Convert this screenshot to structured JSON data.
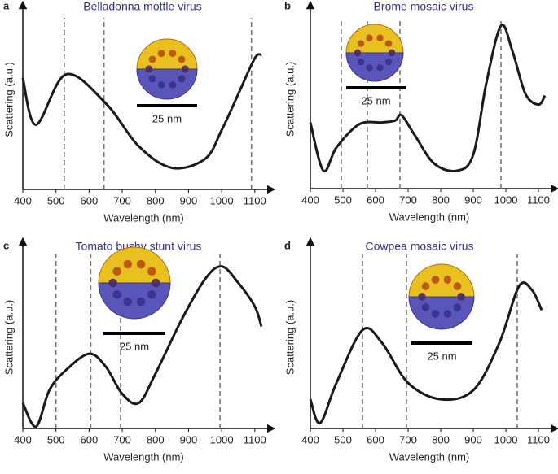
{
  "chart_data": [
    {
      "type": "line",
      "panel": "a",
      "title": "Belladonna mottle virus",
      "xlabel": "Wavelength (nm)",
      "ylabel": "Scattering (a.u.)",
      "x": [
        400,
        440,
        530,
        650,
        750,
        850,
        950,
        1000,
        1050,
        1100,
        1120
      ],
      "values": [
        0.62,
        0.36,
        0.64,
        0.48,
        0.24,
        0.12,
        0.17,
        0.33,
        0.53,
        0.73,
        0.75
      ],
      "color": "#1a1a1a",
      "markers": [
        525,
        645,
        1090
      ],
      "scale_label": "25 nm",
      "xlim": [
        400,
        1130
      ],
      "ylim": [
        0,
        1
      ],
      "xticks": [
        400,
        500,
        600,
        700,
        800,
        900,
        1000,
        1100
      ]
    },
    {
      "type": "line",
      "panel": "b",
      "title": "Brome mosaic virus",
      "xlabel": "Wavelength (nm)",
      "ylabel": "Scattering (a.u.)",
      "x": [
        400,
        440,
        480,
        550,
        620,
        660,
        680,
        720,
        780,
        850,
        900,
        940,
        985,
        1020,
        1060,
        1100,
        1120
      ],
      "values": [
        0.37,
        0.1,
        0.23,
        0.36,
        0.37,
        0.38,
        0.41,
        0.3,
        0.14,
        0.1,
        0.19,
        0.59,
        0.91,
        0.77,
        0.53,
        0.47,
        0.52
      ],
      "color": "#1a1a1a",
      "markers": [
        495,
        575,
        675,
        985
      ],
      "scale_label": "25 nm",
      "xlim": [
        400,
        1130
      ],
      "ylim": [
        0,
        1
      ],
      "xticks": [
        400,
        500,
        600,
        700,
        800,
        900,
        1000,
        1100
      ]
    },
    {
      "type": "line",
      "panel": "c",
      "title": "Tomato bushy stunt virus",
      "xlabel": "Wavelength (nm)",
      "ylabel": "Scattering (a.u.)",
      "x": [
        400,
        440,
        480,
        530,
        600,
        650,
        700,
        750,
        800,
        880,
        950,
        1000,
        1050,
        1100,
        1120
      ],
      "values": [
        0.14,
        0.01,
        0.21,
        0.32,
        0.41,
        0.34,
        0.19,
        0.14,
        0.3,
        0.6,
        0.82,
        0.89,
        0.8,
        0.67,
        0.56
      ],
      "color": "#1a1a1a",
      "markers": [
        500,
        605,
        695,
        995
      ],
      "scale_label": "25 nm",
      "xlim": [
        400,
        1130
      ],
      "ylim": [
        0,
        1
      ],
      "xticks": [
        400,
        500,
        600,
        700,
        800,
        900,
        1000,
        1100
      ]
    },
    {
      "type": "line",
      "panel": "d",
      "title": "Cowpea mosaic virus",
      "xlabel": "Wavelength (nm)",
      "ylabel": "Scattering (a.u.)",
      "x": [
        400,
        430,
        480,
        560,
        620,
        700,
        800,
        900,
        980,
        1040,
        1080,
        1110
      ],
      "values": [
        0.16,
        0.03,
        0.25,
        0.54,
        0.47,
        0.25,
        0.16,
        0.21,
        0.47,
        0.78,
        0.76,
        0.65
      ],
      "color": "#1a1a1a",
      "markers": [
        560,
        695,
        1035
      ],
      "scale_label": "25 nm",
      "xlim": [
        400,
        1130
      ],
      "ylim": [
        0,
        1
      ],
      "xticks": [
        400,
        500,
        600,
        700,
        800,
        900,
        1000,
        1100
      ]
    }
  ]
}
